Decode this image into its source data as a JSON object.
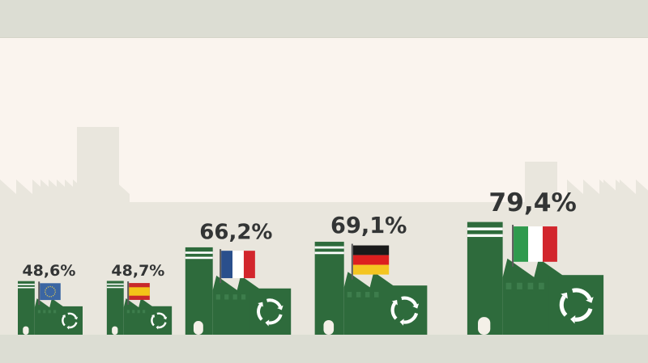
{
  "colors": {
    "background": "#faf4ee",
    "skyline": "#e9e6dd",
    "band": "#dcddd3",
    "factory": "#2e6b3c",
    "factory_shade": "#3d7d4c",
    "recycle": "#ffffff",
    "label": "#333535"
  },
  "chart_data": {
    "type": "bar",
    "categories": [
      "EU",
      "Spain",
      "France",
      "Germany",
      "Italy"
    ],
    "flag_icons": [
      "eu-flag-icon",
      "spain-flag-icon",
      "france-flag-icon",
      "germany-flag-icon",
      "italy-flag-icon"
    ],
    "values": [
      48.6,
      48.7,
      66.2,
      69.1,
      79.4
    ],
    "value_labels": [
      "48,6%",
      "48,7%",
      "66,2%",
      "69,1%",
      "79,4%"
    ],
    "unit": "%",
    "title": "",
    "xlabel": "",
    "ylabel": "",
    "grid": false,
    "legend": "none"
  }
}
